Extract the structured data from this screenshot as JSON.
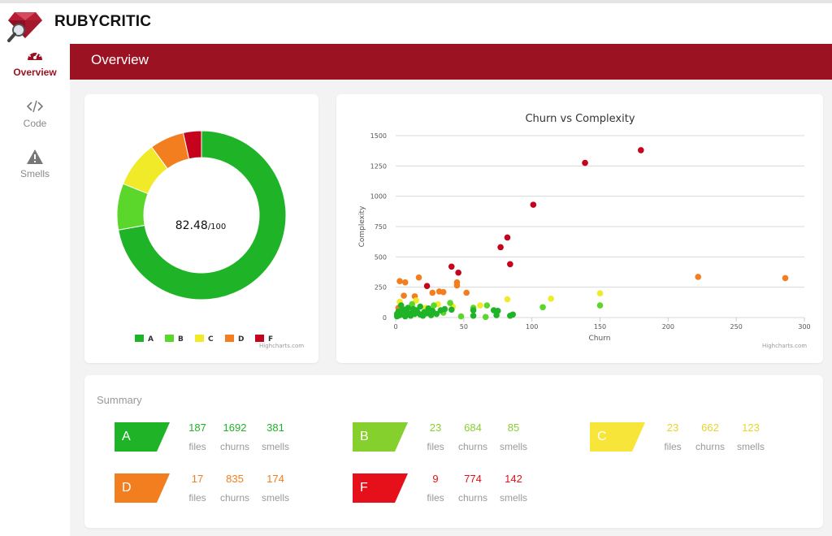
{
  "app": {
    "brand": "RUBYCRITIC"
  },
  "nav": [
    {
      "label": "Overview",
      "icon": "dashboard-icon",
      "active": true
    },
    {
      "label": "Code",
      "icon": "code-icon",
      "active": false
    },
    {
      "label": "Smells",
      "icon": "warning-icon",
      "active": false
    }
  ],
  "header": {
    "title": "Overview"
  },
  "score": {
    "value": "82.48",
    "max": "/100"
  },
  "donut": {
    "credits": "Highcharts.com",
    "slices": [
      {
        "name": "A",
        "value": 187,
        "color": "#1fb327"
      },
      {
        "name": "B",
        "value": 23,
        "color": "#5bd62b"
      },
      {
        "name": "C",
        "value": 23,
        "color": "#f1ea28"
      },
      {
        "name": "D",
        "value": 17,
        "color": "#f27e1f"
      },
      {
        "name": "F",
        "value": 9,
        "color": "#c6031c"
      }
    ]
  },
  "chart_data": {
    "type": "scatter",
    "title": "Churn vs Complexity",
    "xlabel": "Churn",
    "ylabel": "Complexity",
    "xlim": [
      0,
      300
    ],
    "ylim": [
      0,
      1500
    ],
    "x_ticks": [
      "0",
      "50",
      "100",
      "150",
      "200",
      "250",
      "300"
    ],
    "y_ticks": [
      "0",
      "250",
      "500",
      "750",
      "1000",
      "1250",
      "1500"
    ],
    "grid": true,
    "credits": "Highcharts.com",
    "points": [
      {
        "x": 180,
        "y": 1380,
        "color": "#c6031c"
      },
      {
        "x": 139,
        "y": 1275,
        "color": "#c6031c"
      },
      {
        "x": 101,
        "y": 930,
        "color": "#c6031c"
      },
      {
        "x": 82,
        "y": 660,
        "color": "#c6031c"
      },
      {
        "x": 77,
        "y": 580,
        "color": "#c6031c"
      },
      {
        "x": 84,
        "y": 440,
        "color": "#c6031c"
      },
      {
        "x": 41,
        "y": 420,
        "color": "#c6031c"
      },
      {
        "x": 46,
        "y": 370,
        "color": "#c6031c"
      },
      {
        "x": 23,
        "y": 260,
        "color": "#c6031c"
      },
      {
        "x": 222,
        "y": 335,
        "color": "#f27e1f"
      },
      {
        "x": 286,
        "y": 325,
        "color": "#f27e1f"
      },
      {
        "x": 17,
        "y": 330,
        "color": "#f27e1f"
      },
      {
        "x": 3,
        "y": 300,
        "color": "#f27e1f"
      },
      {
        "x": 7,
        "y": 290,
        "color": "#f27e1f"
      },
      {
        "x": 45,
        "y": 290,
        "color": "#f27e1f"
      },
      {
        "x": 45,
        "y": 265,
        "color": "#f27e1f"
      },
      {
        "x": 32,
        "y": 215,
        "color": "#f27e1f"
      },
      {
        "x": 27,
        "y": 205,
        "color": "#f27e1f"
      },
      {
        "x": 35,
        "y": 210,
        "color": "#f27e1f"
      },
      {
        "x": 52,
        "y": 205,
        "color": "#f27e1f"
      },
      {
        "x": 6,
        "y": 180,
        "color": "#f27e1f"
      },
      {
        "x": 14,
        "y": 175,
        "color": "#f27e1f"
      },
      {
        "x": 2,
        "y": 80,
        "color": "#f27e1f"
      },
      {
        "x": 150,
        "y": 200,
        "color": "#f1ea28"
      },
      {
        "x": 114,
        "y": 155,
        "color": "#f1ea28"
      },
      {
        "x": 82,
        "y": 150,
        "color": "#f1ea28"
      },
      {
        "x": 15,
        "y": 140,
        "color": "#f1ea28"
      },
      {
        "x": 3,
        "y": 130,
        "color": "#f1ea28"
      },
      {
        "x": 31,
        "y": 110,
        "color": "#f1ea28"
      },
      {
        "x": 62,
        "y": 100,
        "color": "#f1ea28"
      },
      {
        "x": 42,
        "y": 90,
        "color": "#f1ea28"
      },
      {
        "x": 22,
        "y": 80,
        "color": "#f1ea28"
      },
      {
        "x": 8,
        "y": 60,
        "color": "#f1ea28"
      },
      {
        "x": 150,
        "y": 100,
        "color": "#5bd62b"
      },
      {
        "x": 108,
        "y": 85,
        "color": "#5bd62b"
      },
      {
        "x": 67,
        "y": 100,
        "color": "#5bd62b"
      },
      {
        "x": 57,
        "y": 80,
        "color": "#5bd62b"
      },
      {
        "x": 40,
        "y": 120,
        "color": "#5bd62b"
      },
      {
        "x": 28,
        "y": 100,
        "color": "#5bd62b"
      },
      {
        "x": 12,
        "y": 110,
        "color": "#5bd62b"
      },
      {
        "x": 48,
        "y": 10,
        "color": "#5bd62b"
      },
      {
        "x": 66,
        "y": 5,
        "color": "#5bd62b"
      },
      {
        "x": 35,
        "y": 40,
        "color": "#5bd62b"
      },
      {
        "x": 5,
        "y": 30,
        "color": "#5bd62b"
      },
      {
        "x": 86,
        "y": 25,
        "color": "#1fb327"
      },
      {
        "x": 84,
        "y": 15,
        "color": "#1fb327"
      },
      {
        "x": 72,
        "y": 60,
        "color": "#1fb327"
      },
      {
        "x": 75,
        "y": 55,
        "color": "#1fb327"
      },
      {
        "x": 74,
        "y": 20,
        "color": "#1fb327"
      },
      {
        "x": 57,
        "y": 15,
        "color": "#1fb327"
      },
      {
        "x": 57,
        "y": 60,
        "color": "#1fb327"
      },
      {
        "x": 41,
        "y": 65,
        "color": "#1fb327"
      },
      {
        "x": 33,
        "y": 60,
        "color": "#1fb327"
      },
      {
        "x": 30,
        "y": 30,
        "color": "#1fb327"
      },
      {
        "x": 27,
        "y": 55,
        "color": "#1fb327"
      },
      {
        "x": 24,
        "y": 75,
        "color": "#1fb327"
      },
      {
        "x": 21,
        "y": 45,
        "color": "#1fb327"
      },
      {
        "x": 18,
        "y": 90,
        "color": "#1fb327"
      },
      {
        "x": 18,
        "y": 25,
        "color": "#1fb327"
      },
      {
        "x": 15,
        "y": 60,
        "color": "#1fb327"
      },
      {
        "x": 12,
        "y": 40,
        "color": "#1fb327"
      },
      {
        "x": 11,
        "y": 15,
        "color": "#1fb327"
      },
      {
        "x": 9,
        "y": 80,
        "color": "#1fb327"
      },
      {
        "x": 8,
        "y": 45,
        "color": "#1fb327"
      },
      {
        "x": 7,
        "y": 10,
        "color": "#1fb327"
      },
      {
        "x": 5,
        "y": 55,
        "color": "#1fb327"
      },
      {
        "x": 4,
        "y": 100,
        "color": "#1fb327"
      },
      {
        "x": 3,
        "y": 20,
        "color": "#1fb327"
      },
      {
        "x": 2,
        "y": 50,
        "color": "#1fb327"
      },
      {
        "x": 1,
        "y": 10,
        "color": "#1fb327"
      },
      {
        "x": 1,
        "y": 30,
        "color": "#1fb327"
      },
      {
        "x": 10,
        "y": 25,
        "color": "#1fb327"
      },
      {
        "x": 14,
        "y": 30,
        "color": "#1fb327"
      },
      {
        "x": 16,
        "y": 45,
        "color": "#1fb327"
      },
      {
        "x": 20,
        "y": 15,
        "color": "#1fb327"
      },
      {
        "x": 23,
        "y": 35,
        "color": "#1fb327"
      },
      {
        "x": 26,
        "y": 20,
        "color": "#1fb327"
      },
      {
        "x": 36,
        "y": 70,
        "color": "#1fb327"
      },
      {
        "x": 6,
        "y": 65,
        "color": "#1fb327"
      },
      {
        "x": 13,
        "y": 70,
        "color": "#1fb327"
      }
    ]
  },
  "summary": {
    "title": "Summary",
    "grades": [
      {
        "letter": "A",
        "color": "#1fb327",
        "files": "187",
        "churns": "1692",
        "smells": "381"
      },
      {
        "letter": "B",
        "color": "#86d02e",
        "files": "23",
        "churns": "684",
        "smells": "85"
      },
      {
        "letter": "C",
        "color": "#f7e53a",
        "files": "23",
        "churns": "662",
        "smells": "123"
      },
      {
        "letter": "D",
        "color": "#f27e1f",
        "files": "17",
        "churns": "835",
        "smells": "174"
      },
      {
        "letter": "F",
        "color": "#e51019",
        "files": "9",
        "churns": "774",
        "smells": "142"
      }
    ],
    "labels": {
      "files": "files",
      "churns": "churns",
      "smells": "smells"
    }
  }
}
